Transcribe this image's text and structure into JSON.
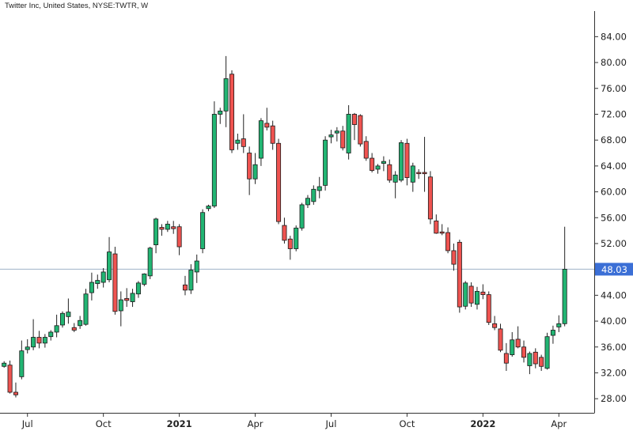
{
  "header": {
    "title": "Twitter Inc, United States, NYSE:TWTR, W"
  },
  "colors": {
    "up": "#22b573",
    "down": "#ef5350",
    "wick": "#222222",
    "price_line": "#9fb3c8",
    "price_tag": "#3b6fd6"
  },
  "chart_data": {
    "type": "candlestick",
    "title": "Twitter Inc, United States, NYSE:TWTR, W",
    "ylim": [
      25.5,
      87
    ],
    "y_ticks": [
      "84.00",
      "80.00",
      "76.00",
      "72.00",
      "68.00",
      "64.00",
      "60.00",
      "56.00",
      "52.00",
      "48.00",
      "44.00",
      "40.00",
      "36.00",
      "32.00",
      "28.00"
    ],
    "x_labels": [
      {
        "label": "Jul",
        "bold": false,
        "index": 4
      },
      {
        "label": "Oct",
        "bold": false,
        "index": 17
      },
      {
        "label": "2021",
        "bold": true,
        "index": 30
      },
      {
        "label": "Apr",
        "bold": false,
        "index": 43
      },
      {
        "label": "Jul",
        "bold": false,
        "index": 56
      },
      {
        "label": "Oct",
        "bold": false,
        "index": 69
      },
      {
        "label": "2022",
        "bold": true,
        "index": 82
      },
      {
        "label": "Apr",
        "bold": false,
        "index": 95
      }
    ],
    "current_price": "48.03",
    "candles": [
      [
        33.0,
        33.8,
        32.8,
        33.5
      ],
      [
        33.2,
        33.9,
        28.8,
        29.0
      ],
      [
        29.0,
        30.5,
        28.2,
        28.6
      ],
      [
        31.4,
        37.0,
        31.0,
        35.4
      ],
      [
        35.6,
        37.2,
        35.0,
        36.0
      ],
      [
        36.0,
        40.3,
        35.5,
        37.5
      ],
      [
        37.5,
        38.5,
        35.8,
        36.6
      ],
      [
        36.6,
        38.0,
        35.9,
        37.5
      ],
      [
        37.6,
        38.6,
        37.0,
        38.3
      ],
      [
        38.3,
        41.0,
        37.5,
        39.3
      ],
      [
        39.4,
        41.5,
        39.0,
        41.2
      ],
      [
        40.7,
        43.5,
        39.6,
        41.4
      ],
      [
        39.0,
        39.7,
        38.3,
        38.6
      ],
      [
        39.3,
        40.8,
        38.8,
        40.1
      ],
      [
        39.5,
        45.0,
        39.3,
        44.2
      ],
      [
        44.4,
        47.5,
        43.2,
        46.0
      ],
      [
        45.8,
        47.2,
        45.0,
        46.3
      ],
      [
        46.0,
        48.2,
        45.2,
        47.6
      ],
      [
        46.4,
        53.0,
        46.0,
        50.7
      ],
      [
        50.4,
        51.5,
        41.0,
        41.5
      ],
      [
        41.6,
        44.6,
        39.2,
        43.3
      ],
      [
        43.5,
        45.1,
        42.2,
        43.2
      ],
      [
        43.0,
        45.0,
        42.2,
        44.3
      ],
      [
        44.2,
        46.2,
        43.6,
        45.9
      ],
      [
        45.7,
        47.4,
        45.4,
        47.3
      ],
      [
        47.0,
        51.5,
        46.5,
        51.3
      ],
      [
        51.8,
        56.0,
        50.5,
        55.8
      ],
      [
        54.5,
        55.0,
        53.2,
        54.2
      ],
      [
        54.2,
        55.5,
        53.8,
        55.0
      ],
      [
        54.6,
        55.5,
        53.5,
        54.3
      ],
      [
        54.6,
        55.0,
        50.2,
        51.5
      ],
      [
        45.6,
        47.0,
        44.0,
        44.8
      ],
      [
        44.8,
        48.8,
        44.2,
        47.9
      ],
      [
        47.6,
        50.3,
        45.9,
        49.3
      ],
      [
        51.2,
        57.3,
        50.5,
        56.8
      ],
      [
        57.4,
        58.0,
        57.0,
        57.8
      ],
      [
        57.8,
        74.0,
        57.5,
        72.0
      ],
      [
        72.0,
        73.0,
        70.5,
        72.5
      ],
      [
        72.5,
        81.0,
        70.0,
        77.5
      ],
      [
        78.2,
        78.8,
        66.0,
        66.5
      ],
      [
        67.5,
        69.0,
        66.5,
        68.0
      ],
      [
        68.2,
        72.0,
        66.0,
        67.0
      ],
      [
        66.0,
        67.0,
        59.5,
        62.0
      ],
      [
        62.0,
        66.0,
        61.2,
        64.2
      ],
      [
        65.2,
        71.4,
        64.0,
        71.0
      ],
      [
        70.6,
        73.0,
        69.5,
        70.0
      ],
      [
        70.2,
        71.0,
        66.5,
        67.5
      ],
      [
        67.5,
        68.2,
        55.0,
        55.4
      ],
      [
        54.8,
        56.0,
        52.0,
        52.5
      ],
      [
        52.7,
        53.2,
        49.5,
        51.2
      ],
      [
        51.2,
        54.8,
        50.8,
        54.4
      ],
      [
        54.4,
        58.3,
        54.0,
        58.0
      ],
      [
        58.0,
        59.5,
        57.5,
        59.0
      ],
      [
        58.5,
        61.0,
        58.0,
        60.4
      ],
      [
        60.2,
        62.3,
        59.0,
        60.8
      ],
      [
        61.0,
        68.6,
        60.2,
        68.0
      ],
      [
        68.5,
        69.6,
        67.5,
        68.8
      ],
      [
        69.1,
        70.0,
        67.8,
        69.4
      ],
      [
        69.4,
        70.2,
        66.4,
        66.8
      ],
      [
        66.0,
        73.4,
        65.0,
        72.0
      ],
      [
        72.0,
        72.2,
        68.0,
        70.4
      ],
      [
        71.8,
        72.0,
        67.0,
        67.4
      ],
      [
        67.8,
        68.6,
        64.8,
        65.2
      ],
      [
        65.2,
        66.0,
        63.0,
        63.3
      ],
      [
        63.5,
        64.3,
        62.8,
        64.0
      ],
      [
        64.4,
        65.5,
        63.2,
        64.7
      ],
      [
        64.2,
        65.0,
        61.4,
        61.8
      ],
      [
        61.5,
        63.2,
        59.0,
        62.6
      ],
      [
        61.8,
        68.0,
        61.5,
        67.6
      ],
      [
        67.5,
        68.2,
        61.0,
        62.2
      ],
      [
        61.5,
        64.5,
        60.0,
        64.0
      ],
      [
        63.0,
        63.5,
        62.0,
        62.8
      ],
      [
        63.0,
        68.5,
        60.0,
        62.8
      ],
      [
        62.3,
        63.2,
        55.0,
        55.8
      ],
      [
        55.5,
        56.5,
        53.5,
        53.6
      ],
      [
        53.8,
        55.0,
        53.3,
        53.6
      ],
      [
        53.7,
        54.5,
        50.5,
        50.9
      ],
      [
        50.9,
        52.0,
        47.8,
        48.8
      ],
      [
        52.2,
        52.6,
        41.3,
        42.2
      ],
      [
        42.3,
        46.2,
        41.8,
        45.9
      ],
      [
        45.4,
        46.0,
        42.2,
        42.8
      ],
      [
        42.6,
        45.3,
        41.8,
        44.6
      ],
      [
        44.5,
        45.7,
        43.4,
        44.1
      ],
      [
        44.1,
        44.6,
        39.4,
        39.8
      ],
      [
        39.6,
        40.8,
        38.6,
        39.0
      ],
      [
        38.8,
        39.6,
        35.2,
        35.5
      ],
      [
        35.0,
        36.6,
        32.3,
        33.5
      ],
      [
        34.8,
        38.3,
        34.5,
        37.1
      ],
      [
        37.2,
        39.2,
        35.8,
        36.0
      ],
      [
        36.0,
        37.0,
        33.6,
        34.4
      ],
      [
        33.1,
        35.3,
        31.8,
        35.0
      ],
      [
        35.2,
        35.8,
        32.7,
        33.4
      ],
      [
        34.4,
        34.8,
        32.3,
        33.0
      ],
      [
        32.7,
        38.2,
        32.5,
        37.6
      ],
      [
        37.8,
        39.3,
        36.5,
        38.6
      ],
      [
        39.1,
        40.9,
        38.3,
        39.6
      ],
      [
        39.6,
        54.6,
        39.2,
        48.03
      ]
    ]
  }
}
